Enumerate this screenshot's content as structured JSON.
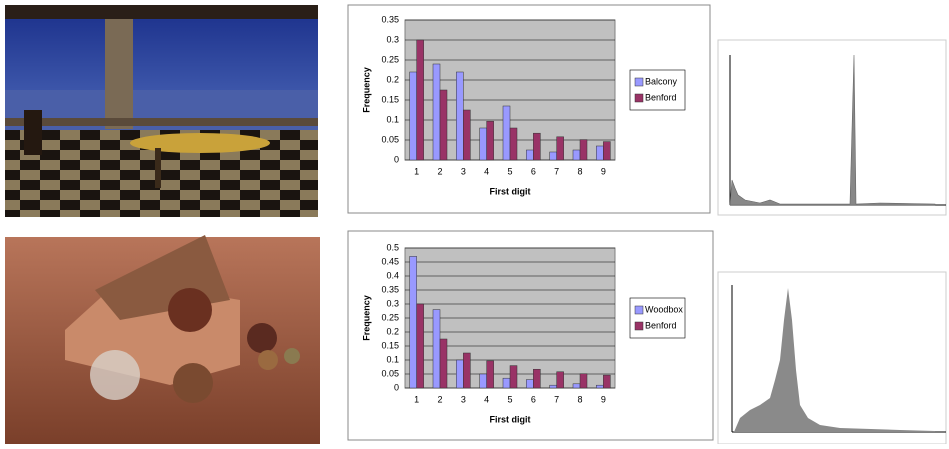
{
  "chart_data": [
    {
      "type": "bar",
      "x_label": "First digit",
      "y_label": "Frequency",
      "categories": [
        "1",
        "2",
        "3",
        "4",
        "5",
        "6",
        "7",
        "8",
        "9"
      ],
      "series": [
        {
          "name": "Balcony",
          "color": "#9999ff",
          "values": [
            0.22,
            0.24,
            0.22,
            0.08,
            0.135,
            0.025,
            0.02,
            0.025,
            0.035
          ]
        },
        {
          "name": "Benford",
          "color": "#993366",
          "values": [
            0.3,
            0.175,
            0.125,
            0.097,
            0.08,
            0.067,
            0.058,
            0.051,
            0.046
          ]
        }
      ],
      "ylim": [
        0,
        0.35
      ],
      "yticks": [
        0,
        0.05,
        0.1,
        0.15,
        0.2,
        0.25,
        0.3,
        0.35
      ],
      "grid": true,
      "legend": "right"
    },
    {
      "type": "bar",
      "x_label": "First digit",
      "y_label": "Frequency",
      "categories": [
        "1",
        "2",
        "3",
        "4",
        "5",
        "6",
        "7",
        "8",
        "9"
      ],
      "series": [
        {
          "name": "Woodbox",
          "color": "#9999ff",
          "values": [
            0.47,
            0.28,
            0.1,
            0.05,
            0.035,
            0.03,
            0.01,
            0.015,
            0.01
          ]
        },
        {
          "name": "Benford",
          "color": "#993366",
          "values": [
            0.3,
            0.175,
            0.125,
            0.097,
            0.08,
            0.067,
            0.058,
            0.051,
            0.046
          ]
        }
      ],
      "ylim": [
        0,
        0.5
      ],
      "yticks": [
        0,
        0.05,
        0.1,
        0.15,
        0.2,
        0.25,
        0.3,
        0.35,
        0.4,
        0.45,
        0.5
      ],
      "grid": true,
      "legend": "right"
    }
  ]
}
